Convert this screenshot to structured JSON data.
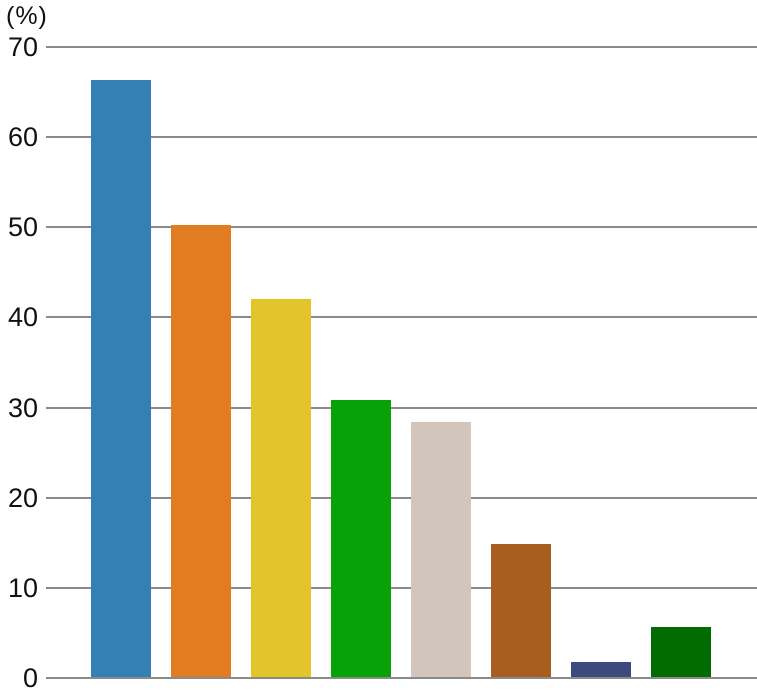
{
  "chart_data": {
    "type": "bar",
    "title": "",
    "xlabel": "",
    "ylabel": "(%)",
    "unit_label": "(%)",
    "categories": [
      "",
      "",
      "",
      "",
      "",
      "",
      "",
      ""
    ],
    "values": [
      66.3,
      50.2,
      42.1,
      30.8,
      28.4,
      14.9,
      1.8,
      5.7
    ],
    "bar_colors": [
      "#347FB4",
      "#E27C21",
      "#E3C52B",
      "#07A207",
      "#D2C6BC",
      "#A85E1E",
      "#3C4A7D",
      "#026B02"
    ],
    "ylim": [
      0,
      70
    ],
    "yticks": [
      0,
      10,
      20,
      30,
      40,
      50,
      60,
      70
    ],
    "grid": true,
    "gridline_color": "#8a8a8a",
    "legend_position": "none",
    "x_axis_labels_visible": false
  }
}
